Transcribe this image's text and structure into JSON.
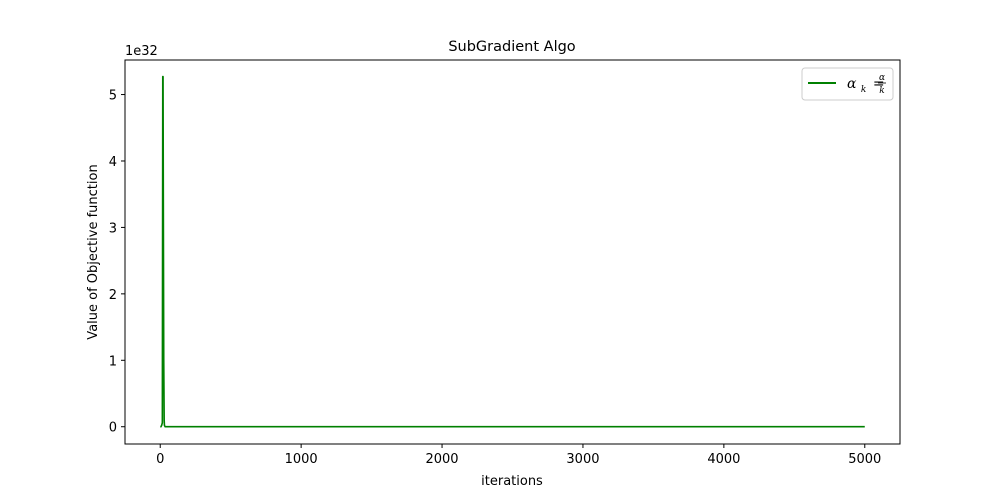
{
  "chart_data": {
    "type": "line",
    "title": "SubGradient Algo",
    "xlabel": "iterations",
    "ylabel": "Value of Objective function",
    "y_offset_label": "1e32",
    "xlim": [
      -250,
      5250
    ],
    "ylim": [
      -0.26,
      5.52
    ],
    "y_scale_factor": 1e+32,
    "xticks": [
      0,
      1000,
      2000,
      3000,
      4000,
      5000
    ],
    "xtick_labels": [
      "0",
      "1000",
      "2000",
      "3000",
      "4000",
      "5000"
    ],
    "yticks": [
      0,
      1,
      2,
      3,
      4,
      5
    ],
    "ytick_labels": [
      "0",
      "1",
      "2",
      "3",
      "4",
      "5"
    ],
    "grid": false,
    "legend_position": "top-right",
    "series": [
      {
        "name": "αk = α/k",
        "name_parts": {
          "base": "α",
          "sub": "k",
          "num": "α",
          "den": "k"
        },
        "color": "#008000",
        "x": [
          0,
          5,
          10,
          15,
          18,
          20,
          22,
          25,
          28,
          30,
          35,
          50,
          100,
          500,
          1000,
          2000,
          3000,
          4000,
          5000
        ],
        "y": [
          0,
          0,
          0.02,
          0.06,
          5.27,
          5.27,
          3.5,
          1.0,
          0.1,
          0.02,
          0,
          0,
          0,
          0,
          0,
          0,
          0,
          0,
          0
        ]
      }
    ]
  }
}
